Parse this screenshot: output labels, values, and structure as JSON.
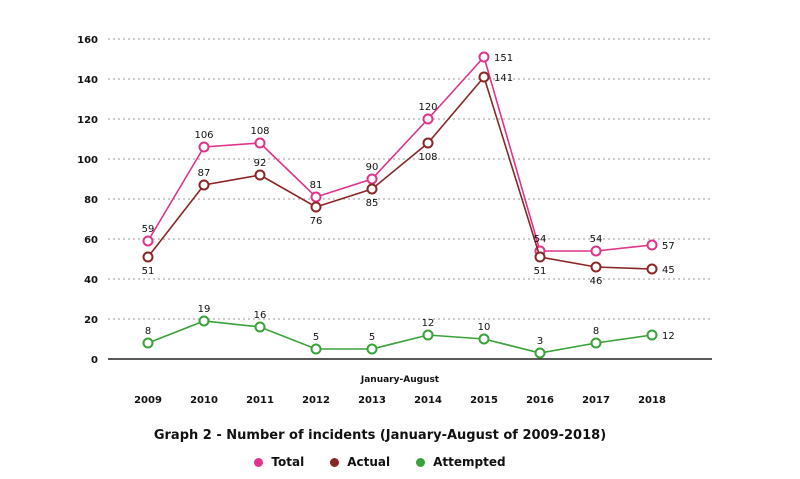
{
  "chart_data": {
    "type": "line",
    "title": "Graph 2 - Number of incidents (January-August of 2009-2018)",
    "x_note": "January-August",
    "categories": [
      "2009",
      "2010",
      "2011",
      "2012",
      "2013",
      "2014",
      "2015",
      "2016",
      "2017",
      "2018"
    ],
    "ylim": [
      0,
      160
    ],
    "yticks": [
      0,
      20,
      40,
      60,
      80,
      100,
      120,
      140,
      160
    ],
    "grid": true,
    "legend_position": "bottom",
    "series": [
      {
        "name": "Total",
        "color": "#e0338a",
        "values": [
          59,
          106,
          108,
          81,
          90,
          120,
          151,
          54,
          54,
          57
        ],
        "label_pos": [
          "above",
          "above",
          "above",
          "above",
          "above",
          "above",
          "right",
          "above",
          "above",
          "right"
        ]
      },
      {
        "name": "Actual",
        "color": "#8b2626",
        "values": [
          51,
          87,
          92,
          76,
          85,
          108,
          141,
          51,
          46,
          45
        ],
        "label_pos": [
          "below",
          "above",
          "above",
          "below",
          "below",
          "below",
          "right",
          "below",
          "below",
          "right"
        ]
      },
      {
        "name": "Attempted",
        "color": "#3aa23a",
        "values": [
          8,
          19,
          16,
          5,
          5,
          12,
          10,
          3,
          8,
          12
        ],
        "label_pos": [
          "above",
          "above",
          "above",
          "above",
          "above",
          "above",
          "above",
          "above",
          "above",
          "right"
        ]
      }
    ]
  }
}
